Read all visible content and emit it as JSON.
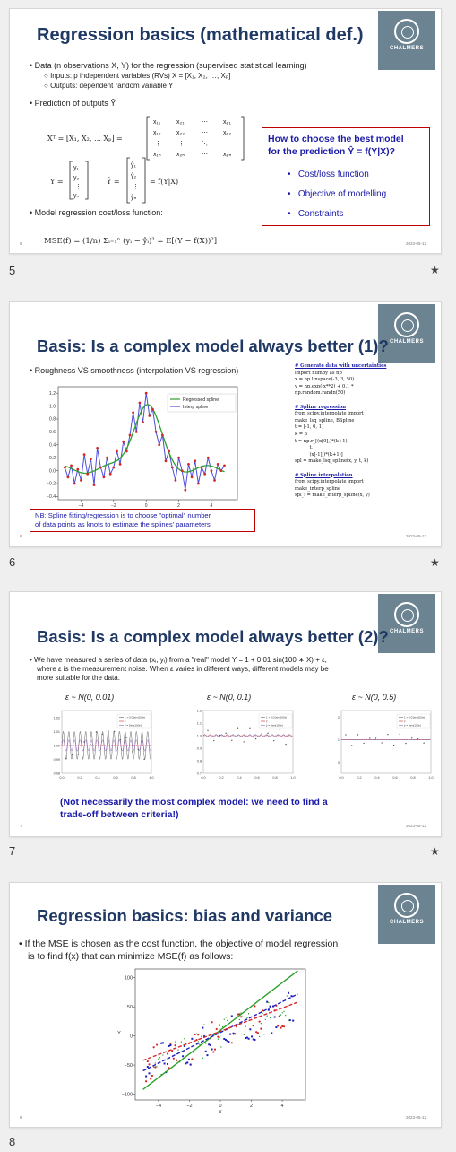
{
  "slides": [
    {
      "number": "5",
      "title": "Regression basics (mathematical def.)",
      "bullets": {
        "b1": "Data (n observations X, Y) for the regression (supervised statistical learning)",
        "b1a": "Inputs: p independent variables (RVs) X = [X₁, X₂, …, Xₚ]",
        "b1b": "Outputs: dependent random variable Y",
        "b2": "Prediction of outputs Ŷ",
        "b3": "Model regression cost/loss function:"
      },
      "math": {
        "xt": "Xᵀ = [X₁,  X₂,  …  Xₚ] =",
        "y": "Y =",
        "yhat": "Ŷ =",
        "f": "= f(Y|X)",
        "mse": "MSE(f) = (1/n) Σᵢ₌₁ⁿ (yᵢ − ŷᵢ)² = E[(Y − f(X))²]"
      },
      "box": {
        "q1": "How to choose the best model",
        "q2": "for the prediction Ŷ = f(Y|X)?",
        "items": [
          "Cost/loss function",
          "Objective of modelling",
          "Constraints"
        ]
      },
      "page": "5",
      "date": "2023-05-12"
    },
    {
      "number": "6",
      "title": "Basis: Is a complex model always better (1)?",
      "bullet": "Roughness VS smoothness (interpolation VS regression)",
      "legend": [
        "Regressed spline",
        "Interp spline"
      ],
      "note1": "NB: Spline fitting/regression is to choose \"optimal\" number",
      "note2": "of data points as knots to estimate the splines' parameters!",
      "code": {
        "h1": "# Generate data with uncertainties",
        "c1": "import numpy as np\nx = np.linspace(-3, 3, 50)\ny = np.exp(-x**2) + 0.1 *\nnp.random.randn(50)",
        "h2": "# Spline regression",
        "c2": "from scipy.interpolate import\nmake_lsq_spline, BSpline\nt = [-1, 0, 1]\nk = 3\nt = np.r_[(x[0],)*(k+1),\n          t,\n          (x[-1],)*(k+1)]\nspl = make_lsq_spline(x, y, t, k)",
        "h3": "# Spline interpolation",
        "c3": "from scipy.interpolate import\nmake_interp_spline\nspl_i = make_interp_spline(x, y)"
      },
      "page": "6",
      "date": "2023-05-12"
    },
    {
      "number": "7",
      "title": "Basis: Is a complex model always better (2)?",
      "bullet1": "We have measured a series of data (xᵢ, yᵢ) from a \"real\" model Y = 1 + 0.01 sin(100 ∗ X) + ε,",
      "bullet2": "where ε is the measurement noise. When ε varies in different ways, different models may be",
      "bullet3": "more suitable for the data.",
      "panels": [
        "ε ~ N(0, 0.01)",
        "ε ~ N(0, 0.1)",
        "ε ~ N(0, 0.5)"
      ],
      "legend": [
        "1 + 0.01sin(100x)",
        "ŷ",
        "ŷ = 0sin(100x)"
      ],
      "conclusion1": "(Not necessarily the most complex model: we need to find a",
      "conclusion2": "trade-off between criteria!)",
      "page": "7",
      "date": "2023-05-12"
    },
    {
      "number": "8",
      "title": "Regression basics: bias and variance",
      "bullet1": "If the MSE is chosen as the cost function, the objective of model regression",
      "bullet2": "is to find f(x) that can minimize MSE(f) as follows:",
      "page": "8",
      "date": "2023-05-12"
    }
  ],
  "logo_text": "CHALMERS",
  "star": "★",
  "chart_data": [
    {
      "type": "line",
      "title": "",
      "xticks": [
        -4,
        -2,
        0,
        2,
        4
      ],
      "yticks": [
        -0.4,
        -0.2,
        0.0,
        0.2,
        0.4,
        0.6,
        0.8,
        1.0,
        1.2
      ],
      "xlim": [
        -5.4,
        5.6
      ],
      "ylim": [
        -0.45,
        1.3
      ],
      "series": [
        {
          "name": "Regressed spline",
          "color": "#2ca02c"
        },
        {
          "name": "Interp spline",
          "color": "#4b4bdc"
        }
      ],
      "points_x": [
        -5.0,
        -4.8,
        -4.6,
        -4.4,
        -4.2,
        -4.0,
        -3.8,
        -3.6,
        -3.4,
        -3.2,
        -3.0,
        -2.8,
        -2.6,
        -2.4,
        -2.2,
        -2.0,
        -1.8,
        -1.6,
        -1.4,
        -1.2,
        -1.0,
        -0.8,
        -0.6,
        -0.4,
        -0.2,
        0.0,
        0.2,
        0.4,
        0.6,
        0.8,
        1.0,
        1.2,
        1.4,
        1.6,
        1.8,
        2.0,
        2.2,
        2.4,
        2.6,
        2.8,
        3.0,
        3.2,
        3.4,
        3.6,
        3.8,
        4.0,
        4.2,
        4.4,
        4.6,
        4.8
      ],
      "points_y": [
        0.05,
        -0.1,
        0.08,
        -0.2,
        0.02,
        -0.15,
        0.25,
        -0.05,
        0.18,
        -0.22,
        0.35,
        0.05,
        -0.1,
        0.2,
        -0.05,
        0.05,
        0.3,
        0.1,
        0.45,
        0.3,
        0.55,
        0.9,
        0.6,
        1.05,
        0.75,
        1.2,
        0.85,
        0.95,
        0.6,
        0.4,
        0.55,
        0.15,
        0.3,
        0.05,
        -0.15,
        0.2,
        0.0,
        -0.3,
        0.1,
        -0.1,
        0.15,
        -0.2,
        0.05,
        -0.05,
        0.2,
        0.0,
        -0.15,
        0.1,
        0.0,
        0.08
      ],
      "legend_position": "top-right"
    },
    {
      "type": "scatter",
      "title": "",
      "xlabel": "X",
      "ylabel": "Y",
      "xticks": [
        -4,
        -2,
        0,
        2,
        4
      ],
      "yticks": [
        -100,
        -50,
        0,
        50,
        100
      ],
      "xlim": [
        -5.5,
        5.5
      ],
      "ylim": [
        -110,
        115
      ],
      "lines": [
        {
          "color": "#2ca02c",
          "x": [
            -5,
            5
          ],
          "y": [
            -92,
            112
          ]
        },
        {
          "color": "#1f1fbf",
          "x": [
            -5,
            5
          ],
          "y": [
            -60,
            72
          ],
          "dashed": true
        },
        {
          "color": "#d62728",
          "x": [
            -5,
            5
          ],
          "y": [
            -42,
            58
          ],
          "dashed": true
        }
      ]
    }
  ]
}
